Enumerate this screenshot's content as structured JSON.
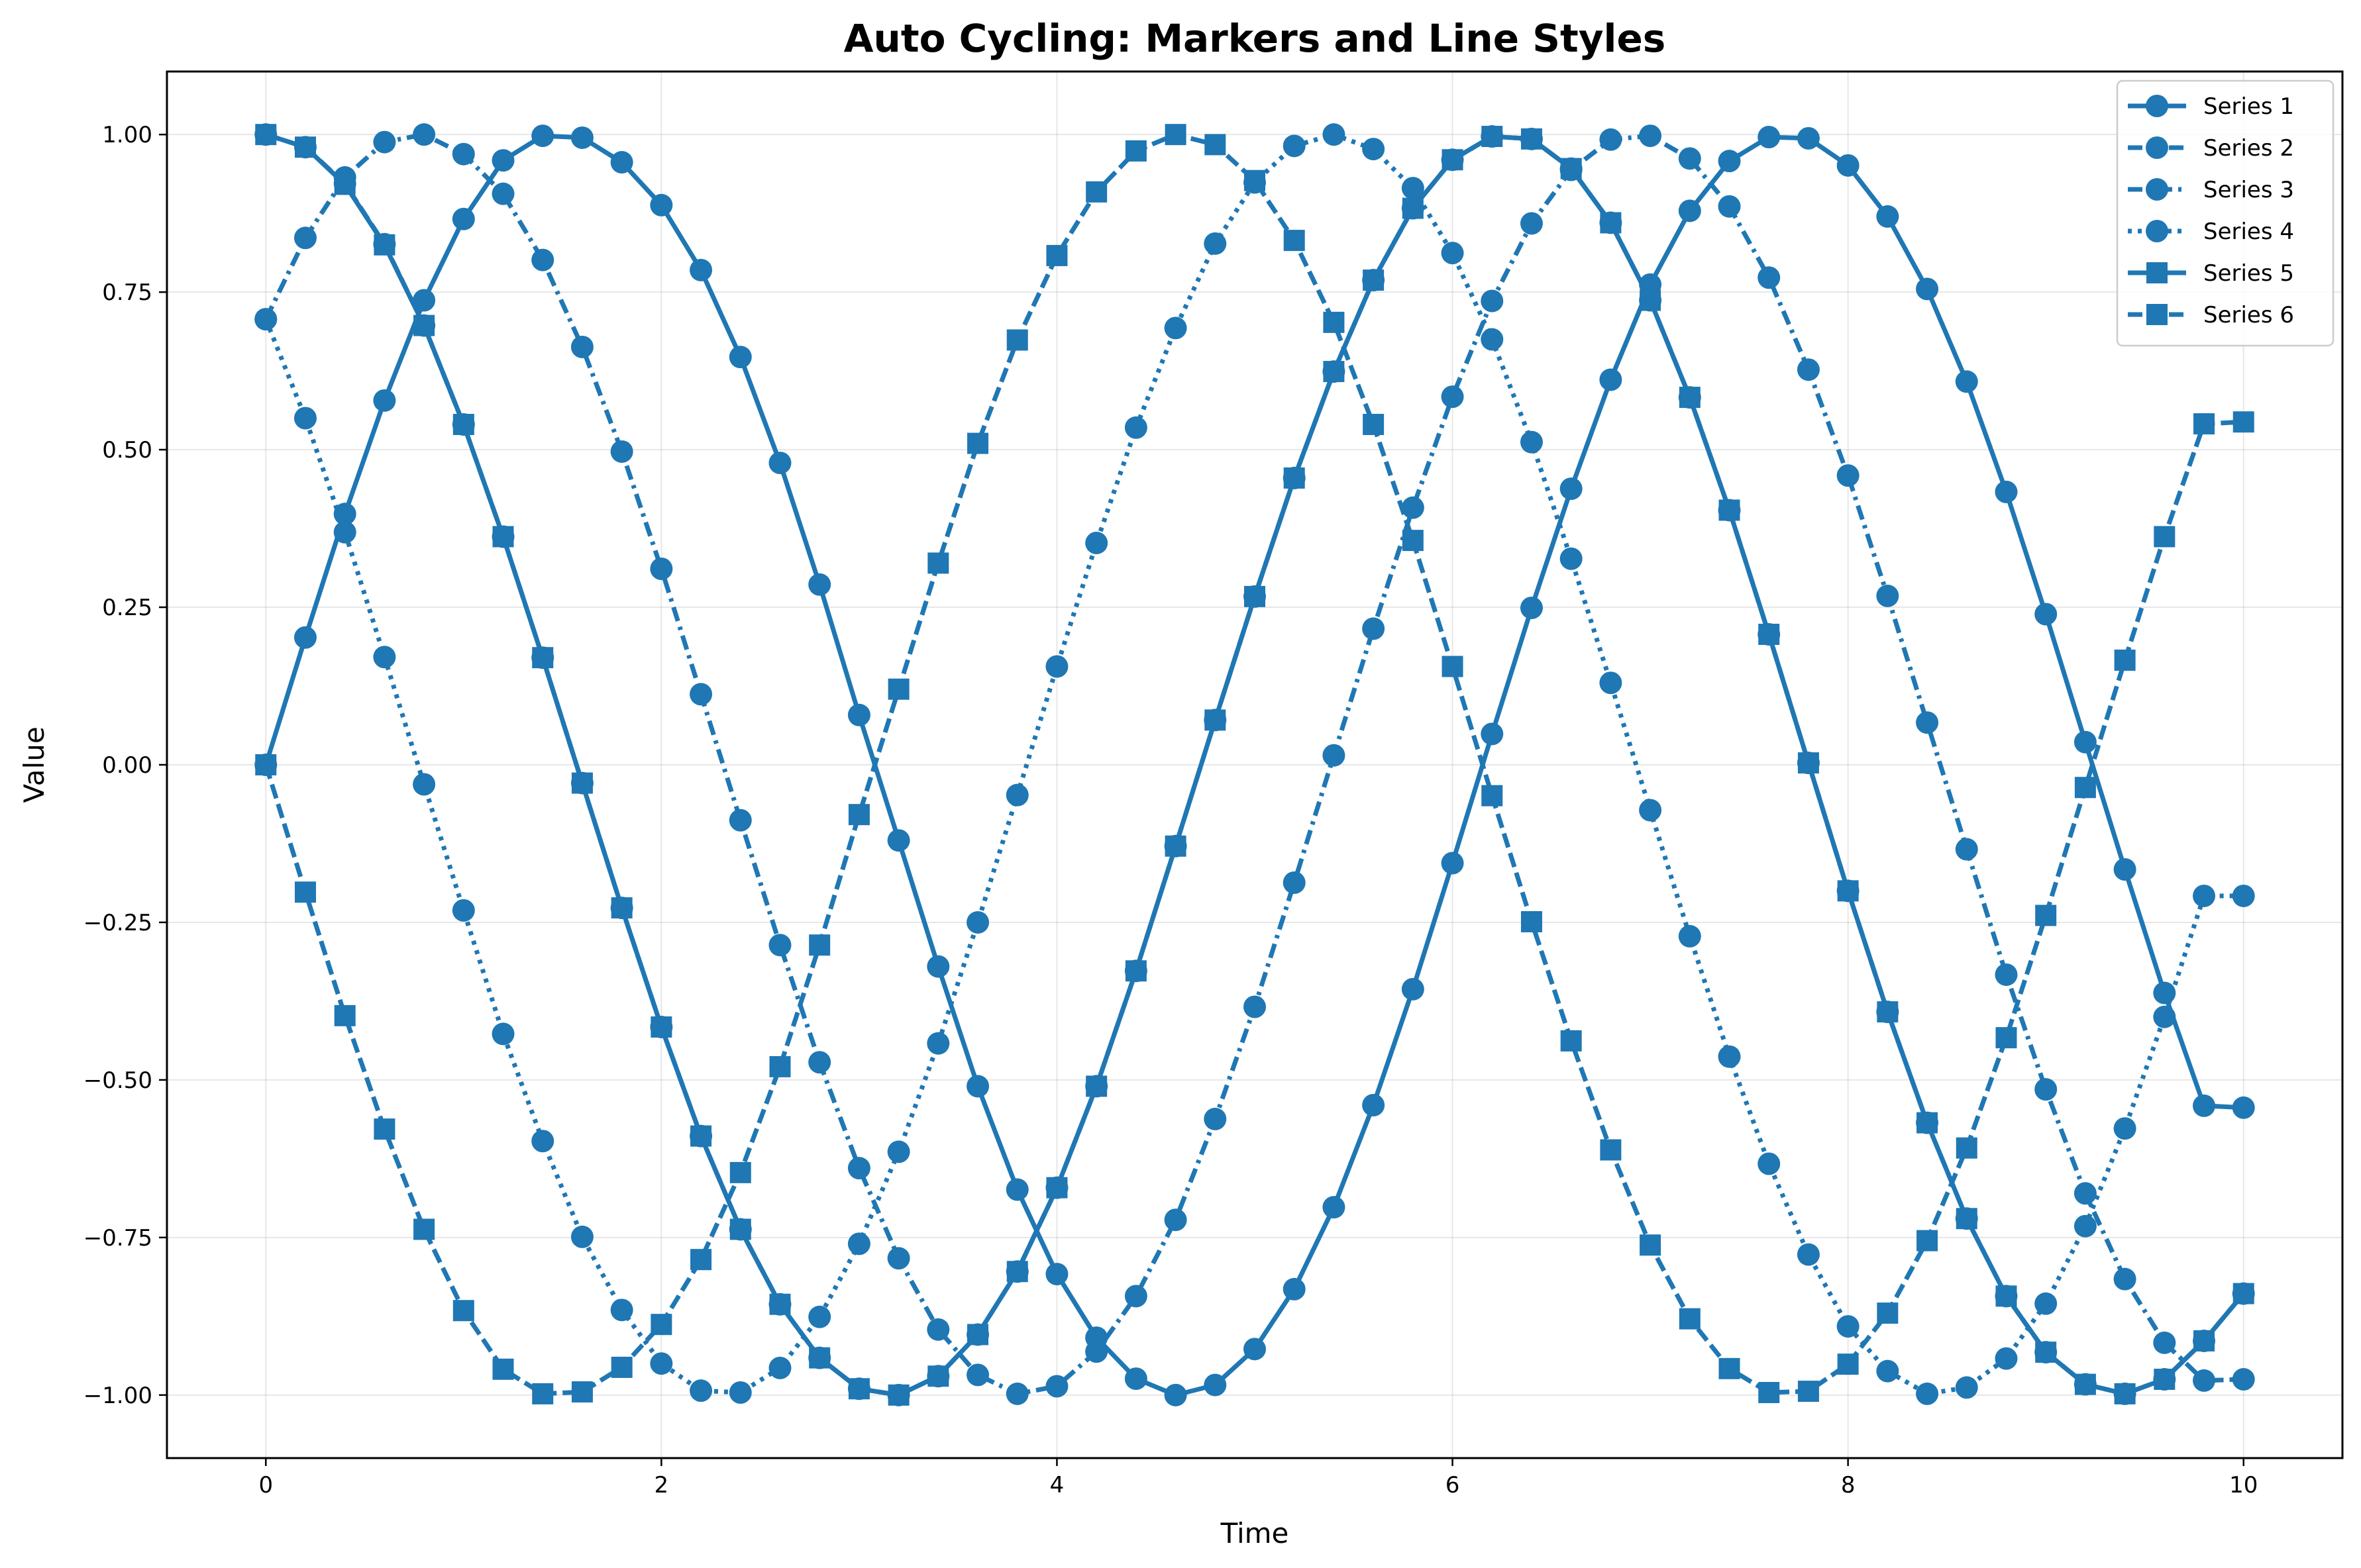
{
  "chart_data": {
    "type": "line",
    "title": "Auto Cycling: Markers and Line Styles",
    "xlabel": "Time",
    "ylabel": "Value",
    "xlim": [
      -0.5,
      10.5
    ],
    "ylim": [
      -1.1,
      1.1
    ],
    "xticks": [
      0,
      2,
      4,
      6,
      8,
      10
    ],
    "yticks": [
      -1.0,
      -0.75,
      -0.5,
      -0.25,
      0.0,
      0.25,
      0.5,
      0.75,
      1.0
    ],
    "ytick_labels": [
      "−1.00",
      "−0.75",
      "−0.50",
      "−0.25",
      "0.00",
      "0.25",
      "0.50",
      "0.75",
      "1.00"
    ],
    "xtick_labels": [
      "0",
      "2",
      "4",
      "6",
      "8",
      "10"
    ],
    "grid": true,
    "legend_position": "top-right",
    "color": "#1f77b4",
    "x": [
      0,
      0.2,
      0.4,
      0.6,
      0.8,
      1.0,
      1.2,
      1.4,
      1.6,
      1.8,
      2.0,
      2.2,
      2.4,
      2.6,
      2.8,
      3.0,
      3.2,
      3.4,
      3.6,
      3.8,
      4.0,
      4.2,
      4.4,
      4.6,
      4.8,
      5.0,
      5.2,
      5.4,
      5.6,
      5.8,
      6.0,
      6.2,
      6.4,
      6.6,
      6.8,
      7.0,
      7.2,
      7.4,
      7.6,
      7.8,
      8.0,
      8.2,
      8.4,
      8.6,
      8.8,
      9.0,
      9.2,
      9.4,
      9.6,
      9.8,
      10.0
    ],
    "series": [
      {
        "name": "Series 1",
        "marker": "circle",
        "linestyle": "solid",
        "values": [
          0.0,
          0.202,
          0.398,
          0.578,
          0.737,
          0.866,
          0.959,
          0.998,
          0.995,
          0.956,
          0.888,
          0.785,
          0.647,
          0.479,
          0.286,
          0.079,
          -0.12,
          -0.32,
          -0.51,
          -0.674,
          -0.808,
          -0.909,
          -0.974,
          -1.0,
          -0.984,
          -0.927,
          -0.832,
          -0.702,
          -0.54,
          -0.356,
          -0.156,
          0.049,
          0.249,
          0.438,
          0.611,
          0.762,
          0.879,
          0.958,
          0.996,
          0.994,
          0.951,
          0.87,
          0.755,
          0.608,
          0.433,
          0.239,
          0.036,
          -0.166,
          -0.362,
          -0.541,
          -0.544
        ]
      },
      {
        "name": "Series 2",
        "marker": "circle",
        "linestyle": "dashed",
        "values": [
          1.0,
          0.98,
          0.922,
          0.826,
          0.697,
          0.54,
          0.362,
          0.17,
          -0.029,
          -0.227,
          -0.416,
          -0.589,
          -0.737,
          -0.856,
          -0.941,
          -0.99,
          -1.0,
          -0.97,
          -0.904,
          -0.804,
          -0.671,
          -0.51,
          -0.327,
          -0.129,
          0.071,
          0.267,
          0.455,
          0.624,
          0.769,
          0.883,
          0.96,
          0.997,
          0.993,
          0.946,
          0.86,
          0.737,
          0.583,
          0.404,
          0.207,
          0.003,
          -0.2,
          -0.392,
          -0.568,
          -0.72,
          -0.843,
          -0.932,
          -0.983,
          -0.998,
          -0.975,
          -0.914,
          -0.839
        ]
      },
      {
        "name": "Series 3",
        "marker": "circle",
        "linestyle": "dashdot",
        "values": [
          0.707,
          0.836,
          0.932,
          0.988,
          1.0,
          0.969,
          0.906,
          0.801,
          0.663,
          0.497,
          0.311,
          0.112,
          -0.088,
          -0.286,
          -0.472,
          -0.64,
          -0.783,
          -0.896,
          -0.968,
          -0.998,
          -0.986,
          -0.931,
          -0.843,
          -0.722,
          -0.562,
          -0.384,
          -0.187,
          0.015,
          0.216,
          0.408,
          0.584,
          0.736,
          0.859,
          0.944,
          0.992,
          0.998,
          0.962,
          0.886,
          0.773,
          0.627,
          0.459,
          0.268,
          0.067,
          -0.134,
          -0.333,
          -0.515,
          -0.68,
          -0.816,
          -0.917,
          -0.977,
          -0.975
        ]
      },
      {
        "name": "Series 4",
        "marker": "circle",
        "linestyle": "dotted",
        "values": [
          0.707,
          0.55,
          0.369,
          0.171,
          -0.031,
          -0.231,
          -0.427,
          -0.597,
          -0.749,
          -0.865,
          -0.95,
          -0.993,
          -0.996,
          -0.957,
          -0.876,
          -0.76,
          -0.614,
          -0.442,
          -0.25,
          -0.048,
          0.156,
          0.352,
          0.535,
          0.693,
          0.827,
          0.924,
          0.982,
          1.0,
          0.977,
          0.915,
          0.812,
          0.675,
          0.512,
          0.327,
          0.13,
          -0.072,
          -0.272,
          -0.463,
          -0.633,
          -0.777,
          -0.891,
          -0.962,
          -0.998,
          -0.988,
          -0.942,
          -0.855,
          -0.732,
          -0.577,
          -0.4,
          -0.208,
          -0.208
        ]
      },
      {
        "name": "Series 5",
        "marker": "square",
        "linestyle": "solid",
        "values": [
          1.0,
          0.98,
          0.921,
          0.825,
          0.697,
          0.54,
          0.362,
          0.17,
          -0.029,
          -0.227,
          -0.416,
          -0.589,
          -0.737,
          -0.856,
          -0.941,
          -0.99,
          -1.0,
          -0.97,
          -0.904,
          -0.804,
          -0.671,
          -0.51,
          -0.327,
          -0.129,
          0.071,
          0.267,
          0.455,
          0.624,
          0.769,
          0.883,
          0.96,
          0.997,
          0.993,
          0.946,
          0.86,
          0.737,
          0.583,
          0.404,
          0.207,
          0.003,
          -0.2,
          -0.392,
          -0.568,
          -0.72,
          -0.843,
          -0.932,
          -0.983,
          -0.998,
          -0.975,
          -0.914,
          -0.839
        ]
      },
      {
        "name": "Series 6",
        "marker": "square",
        "linestyle": "dashed",
        "values": [
          0.0,
          -0.202,
          -0.398,
          -0.578,
          -0.737,
          -0.866,
          -0.959,
          -0.998,
          -0.995,
          -0.956,
          -0.888,
          -0.785,
          -0.647,
          -0.479,
          -0.286,
          -0.079,
          0.12,
          0.32,
          0.51,
          0.674,
          0.808,
          0.909,
          0.974,
          1.0,
          0.984,
          0.927,
          0.832,
          0.702,
          0.54,
          0.356,
          0.156,
          -0.049,
          -0.249,
          -0.438,
          -0.611,
          -0.762,
          -0.879,
          -0.958,
          -0.996,
          -0.994,
          -0.951,
          -0.87,
          -0.755,
          -0.608,
          -0.433,
          -0.239,
          -0.036,
          0.166,
          0.362,
          0.541,
          0.544
        ]
      }
    ]
  }
}
